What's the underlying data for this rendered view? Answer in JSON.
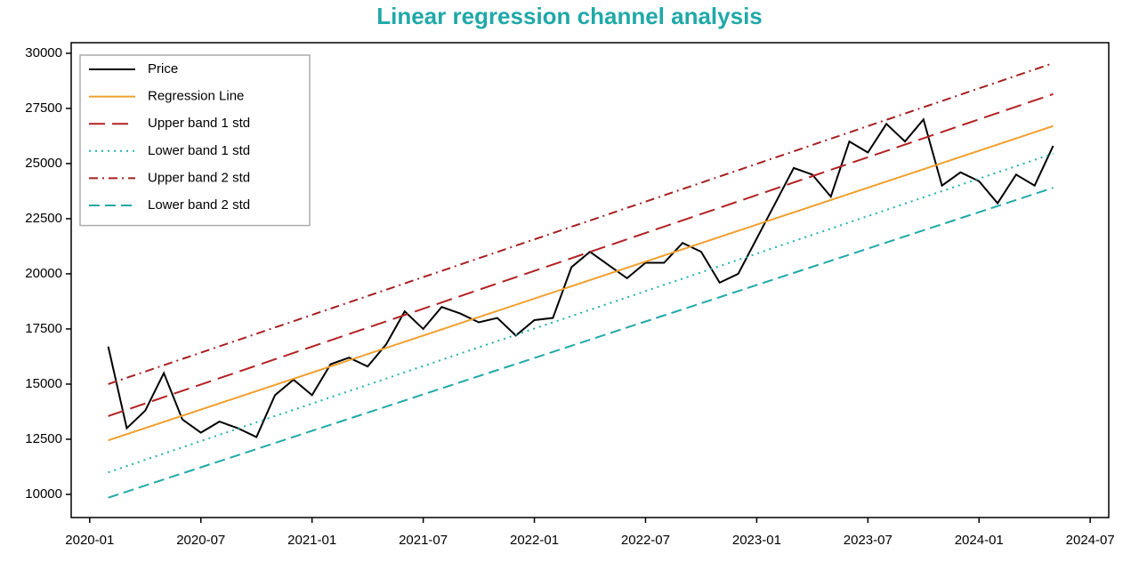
{
  "chart_data": {
    "type": "line",
    "title": "Linear regression channel analysis",
    "xlim": [
      "2019-12",
      "2024-08"
    ],
    "xticks": [
      "2020-01",
      "2020-07",
      "2021-01",
      "2021-07",
      "2022-01",
      "2022-07",
      "2023-01",
      "2023-07",
      "2024-01",
      "2024-07"
    ],
    "ylim": [
      8950,
      30480
    ],
    "yticks": [
      10000,
      12500,
      15000,
      17500,
      20000,
      22500,
      25000,
      27500,
      30000
    ],
    "legend": "upper left",
    "series": [
      {
        "name": "Price",
        "color": "#000000",
        "dash": "solid",
        "x": [
          "2020-02",
          "2020-03",
          "2020-04",
          "2020-05",
          "2020-06",
          "2020-07",
          "2020-08",
          "2020-09",
          "2020-10",
          "2020-11",
          "2020-12",
          "2021-01",
          "2021-02",
          "2021-03",
          "2021-04",
          "2021-05",
          "2021-06",
          "2021-07",
          "2021-08",
          "2021-09",
          "2021-10",
          "2021-11",
          "2021-12",
          "2022-01",
          "2022-02",
          "2022-03",
          "2022-04",
          "2022-05",
          "2022-06",
          "2022-07",
          "2022-08",
          "2022-09",
          "2022-10",
          "2022-11",
          "2022-12",
          "2023-01",
          "2023-02",
          "2023-03",
          "2023-04",
          "2023-05",
          "2023-06",
          "2023-07",
          "2023-08",
          "2023-09",
          "2023-10",
          "2023-11",
          "2023-12",
          "2024-01",
          "2024-02",
          "2024-03",
          "2024-04",
          "2024-05"
        ],
        "values": [
          16700,
          13000,
          13800,
          15500,
          13400,
          12800,
          13300,
          13000,
          12600,
          14500,
          15200,
          14500,
          15900,
          16200,
          15800,
          16800,
          18300,
          17500,
          18500,
          18200,
          17800,
          18000,
          17200,
          17900,
          18000,
          20300,
          21000,
          20400,
          19800,
          20500,
          20500,
          21400,
          21000,
          19600,
          20000,
          21600,
          23200,
          24800,
          24500,
          23500,
          26000,
          25500,
          26800,
          26000,
          27000,
          24000,
          24600,
          24200,
          23200,
          24500,
          24000,
          25800
        ]
      },
      {
        "name": "Regression Line",
        "color": "#f0a030",
        "dash": "solid",
        "x": [
          "2020-02",
          "2024-05"
        ],
        "values": [
          12450,
          26700
        ]
      },
      {
        "name": "Upper band 1 std",
        "color": "#b22222",
        "dash": "18 8",
        "x": [
          "2020-02",
          "2024-05"
        ],
        "values": [
          13550,
          28150
        ]
      },
      {
        "name": "Lower band 1 std",
        "color": "#20b0b0",
        "dash": "2 5",
        "x": [
          "2020-02",
          "2024-05"
        ],
        "values": [
          11000,
          25450
        ]
      },
      {
        "name": "Upper band 2 std",
        "color": "#a52020",
        "dash": "10 5 2 5",
        "x": [
          "2020-02",
          "2024-05"
        ],
        "values": [
          15000,
          29550
        ]
      },
      {
        "name": "Lower band 2 std",
        "color": "#20a8a8",
        "dash": "12 6",
        "x": [
          "2020-02",
          "2024-05"
        ],
        "values": [
          9850,
          23900
        ]
      }
    ]
  }
}
